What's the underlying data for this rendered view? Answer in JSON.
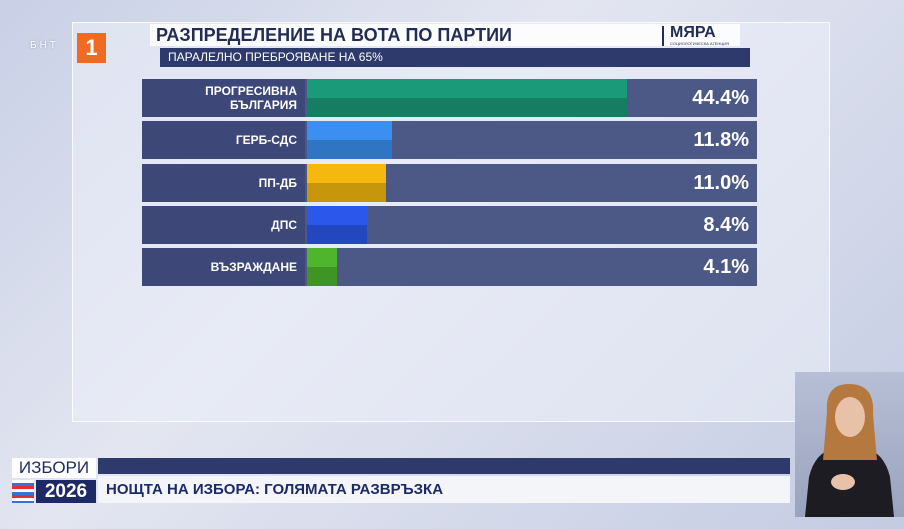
{
  "chart_data": {
    "type": "bar",
    "orientation": "horizontal",
    "title": "РАЗПРЕДЕЛЕНИЕ НА ВОТА ПО ПАРТИИ",
    "subtitle": "ПАРАЛЕЛНО ПРЕБРОЯВАНЕ НА 65%",
    "categories": [
      "ПРОГРЕСИВНА БЪЛГАРИЯ",
      "ГЕРБ-СДС",
      "ПП-ДБ",
      "ДПС",
      "ВЪЗРАЖДАНЕ"
    ],
    "values": [
      44.4,
      11.8,
      11.0,
      8.4,
      4.1
    ],
    "value_labels": [
      "44.4%",
      "11.8%",
      "11.0%",
      "8.4%",
      "4.1%"
    ],
    "colors": [
      "#1a9a78",
      "#3b8ff0",
      "#f5b80f",
      "#2b57ea",
      "#4fb52c"
    ]
  },
  "agency": {
    "name": "МЯРА",
    "tagline": "СОЦИОЛОГИЧЕСКА АГЕНЦИЯ"
  },
  "channel": {
    "name": "БНТ",
    "number": "1"
  },
  "banner": {
    "label": "ИЗБОРИ",
    "year": "2026",
    "headline": "НОЩТА НА ИЗБОРА: ГОЛЯМАТА РАЗВРЪЗКА"
  }
}
